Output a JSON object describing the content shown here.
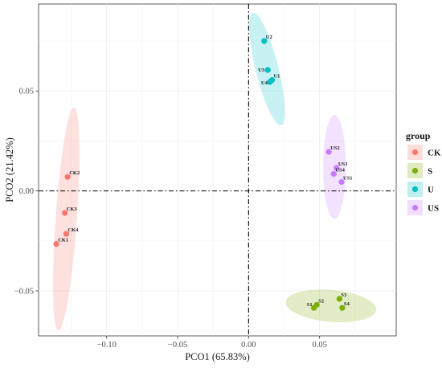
{
  "chart_data": {
    "type": "scatter",
    "xlabel": "PCO1 (65.83%)",
    "ylabel": "PCO2 (21.42%)",
    "xlim": [
      -0.148,
      0.104
    ],
    "ylim": [
      -0.0725,
      0.0935
    ],
    "x_ticks": [
      {
        "value": -0.1,
        "label": "−0.10"
      },
      {
        "value": -0.05,
        "label": "−0.05"
      },
      {
        "value": 0.0,
        "label": "0.00"
      },
      {
        "value": 0.05,
        "label": "0.05"
      }
    ],
    "y_ticks": [
      {
        "value": -0.05,
        "label": "−0.05"
      },
      {
        "value": 0.0,
        "label": "0.00"
      },
      {
        "value": 0.05,
        "label": "0.05"
      }
    ],
    "reference_lines": {
      "x": 0,
      "y": 0,
      "style": "dash-dot"
    },
    "grid": true,
    "legend": {
      "title": "group",
      "position": "right"
    },
    "groups": [
      {
        "name": "CK",
        "color": "#F8766D",
        "points": [
          {
            "label": "CK2",
            "x": -0.1275,
            "y": 0.007
          },
          {
            "label": "CK3",
            "x": -0.1295,
            "y": -0.011
          },
          {
            "label": "CK4",
            "x": -0.1285,
            "y": -0.0215
          },
          {
            "label": "CK1",
            "x": -0.1355,
            "y": -0.0265
          }
        ],
        "ellipse": {
          "cx": -0.1285,
          "cy": -0.014,
          "rx": 0.0075,
          "ry": 0.056,
          "angle": 4
        }
      },
      {
        "name": "S",
        "color": "#7CAE00",
        "points": [
          {
            "label": "S1",
            "x": 0.046,
            "y": -0.0585
          },
          {
            "label": "S2",
            "x": 0.048,
            "y": -0.057
          },
          {
            "label": "S3",
            "x": 0.064,
            "y": -0.054
          },
          {
            "label": "S4",
            "x": 0.066,
            "y": -0.0585
          }
        ],
        "ellipse": {
          "cx": 0.058,
          "cy": -0.0575,
          "rx": 0.032,
          "ry": 0.008,
          "angle": 5
        }
      },
      {
        "name": "U",
        "color": "#00BFC4",
        "points": [
          {
            "label": "U2",
            "x": 0.011,
            "y": 0.075
          },
          {
            "label": "U3",
            "x": 0.0135,
            "y": 0.0605
          },
          {
            "label": "U1",
            "x": 0.0165,
            "y": 0.0555
          },
          {
            "label": "U4",
            "x": 0.015,
            "y": 0.0545
          }
        ],
        "ellipse": {
          "cx": 0.013,
          "cy": 0.061,
          "rx": 0.008,
          "ry": 0.029,
          "angle": -14
        }
      },
      {
        "name": "US",
        "color": "#C77CFF",
        "points": [
          {
            "label": "US2",
            "x": 0.0565,
            "y": 0.0195
          },
          {
            "label": "US3",
            "x": 0.062,
            "y": 0.0115
          },
          {
            "label": "US4",
            "x": 0.06,
            "y": 0.0085
          },
          {
            "label": "US1",
            "x": 0.0655,
            "y": 0.0045
          }
        ],
        "ellipse": {
          "cx": 0.0605,
          "cy": 0.012,
          "rx": 0.008,
          "ry": 0.026,
          "angle": 0
        }
      }
    ]
  }
}
